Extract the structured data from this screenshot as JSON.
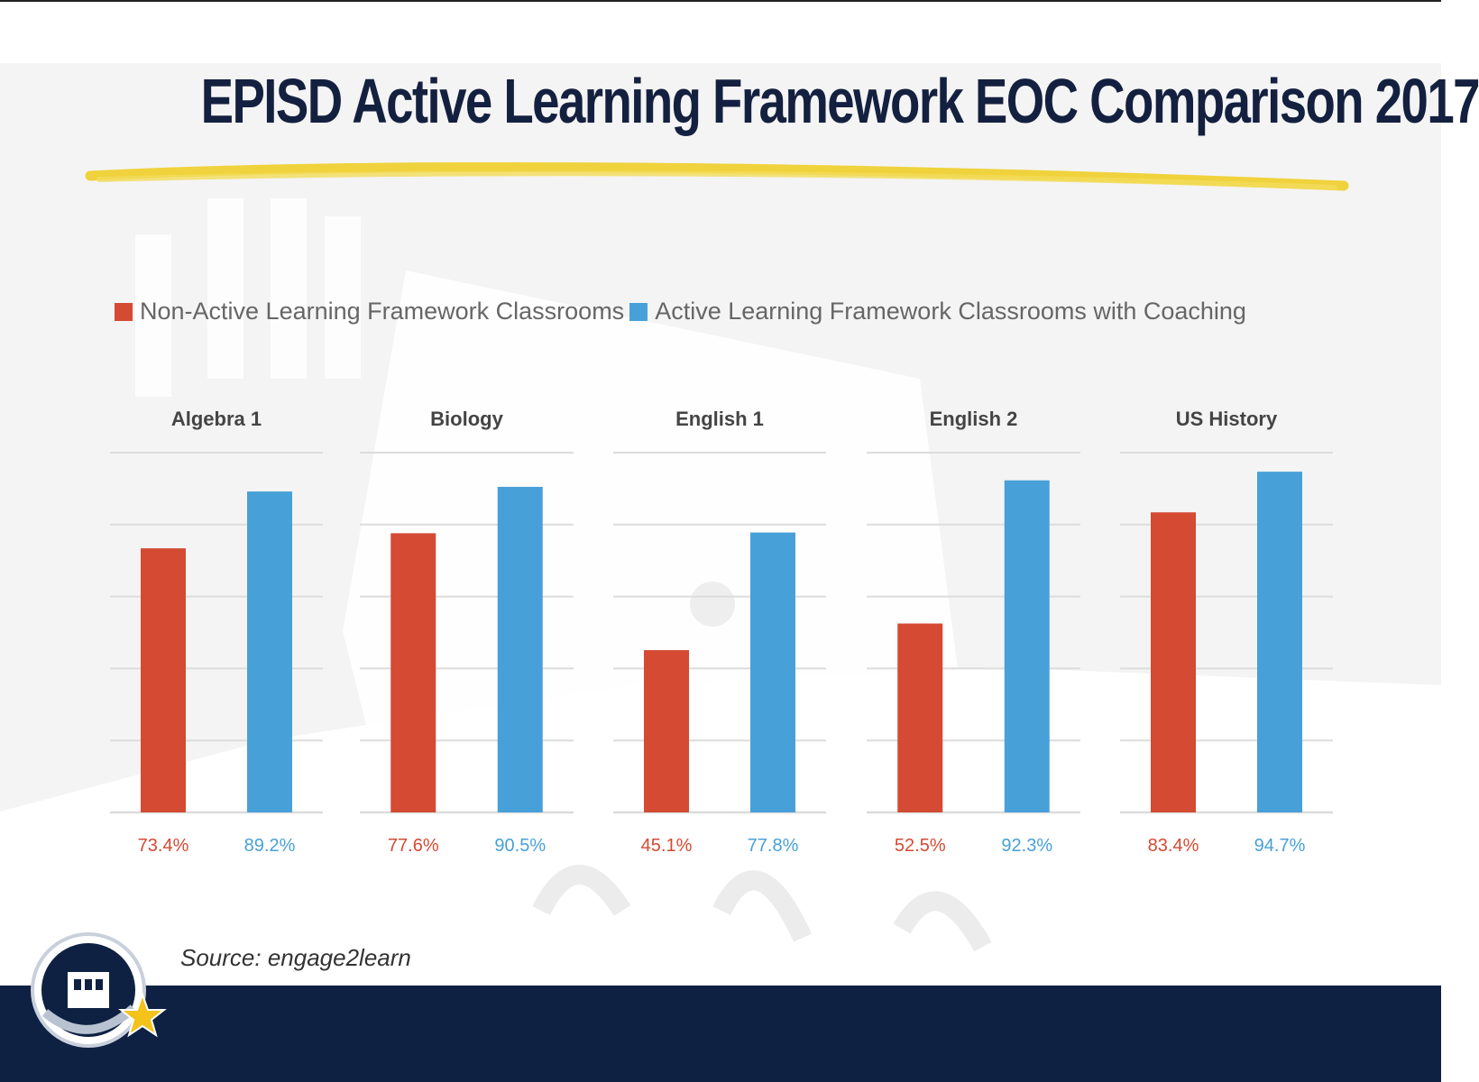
{
  "title": "EPISD Active Learning  Framework EOC Comparison 2017",
  "legend": [
    {
      "label": "Non-Active Learning Framework Classrooms",
      "color": "#d44a33"
    },
    {
      "label": "Active Learning Framework Classrooms with Coaching",
      "color": "#48a0d8"
    }
  ],
  "source": "Source: engage2learn",
  "colors": {
    "red": "#d44a33",
    "blue": "#48a0d8",
    "navy": "#0e2142",
    "title": "#14203f",
    "underline": "#f0d23c"
  },
  "chart_data": {
    "type": "bar",
    "categories": [
      "Algebra 1",
      "Biology",
      "English 1",
      "English 2",
      "US History"
    ],
    "series": [
      {
        "name": "Non-Active Learning Framework Classrooms",
        "values": [
          73.4,
          77.6,
          45.1,
          52.5,
          83.4
        ],
        "color": "#d44a33"
      },
      {
        "name": "Active Learning Framework Classrooms with Coaching",
        "values": [
          89.2,
          90.5,
          77.8,
          92.3,
          94.7
        ],
        "color": "#48a0d8"
      }
    ],
    "value_labels": [
      [
        "73.4%",
        "89.2%"
      ],
      [
        "77.6%",
        "90.5%"
      ],
      [
        "45.1%",
        "77.8%"
      ],
      [
        "52.5%",
        "92.3%"
      ],
      [
        "83.4%",
        "94.7%"
      ]
    ],
    "ylim": [
      0,
      100
    ],
    "grid": true,
    "legend_position": "top-left"
  }
}
